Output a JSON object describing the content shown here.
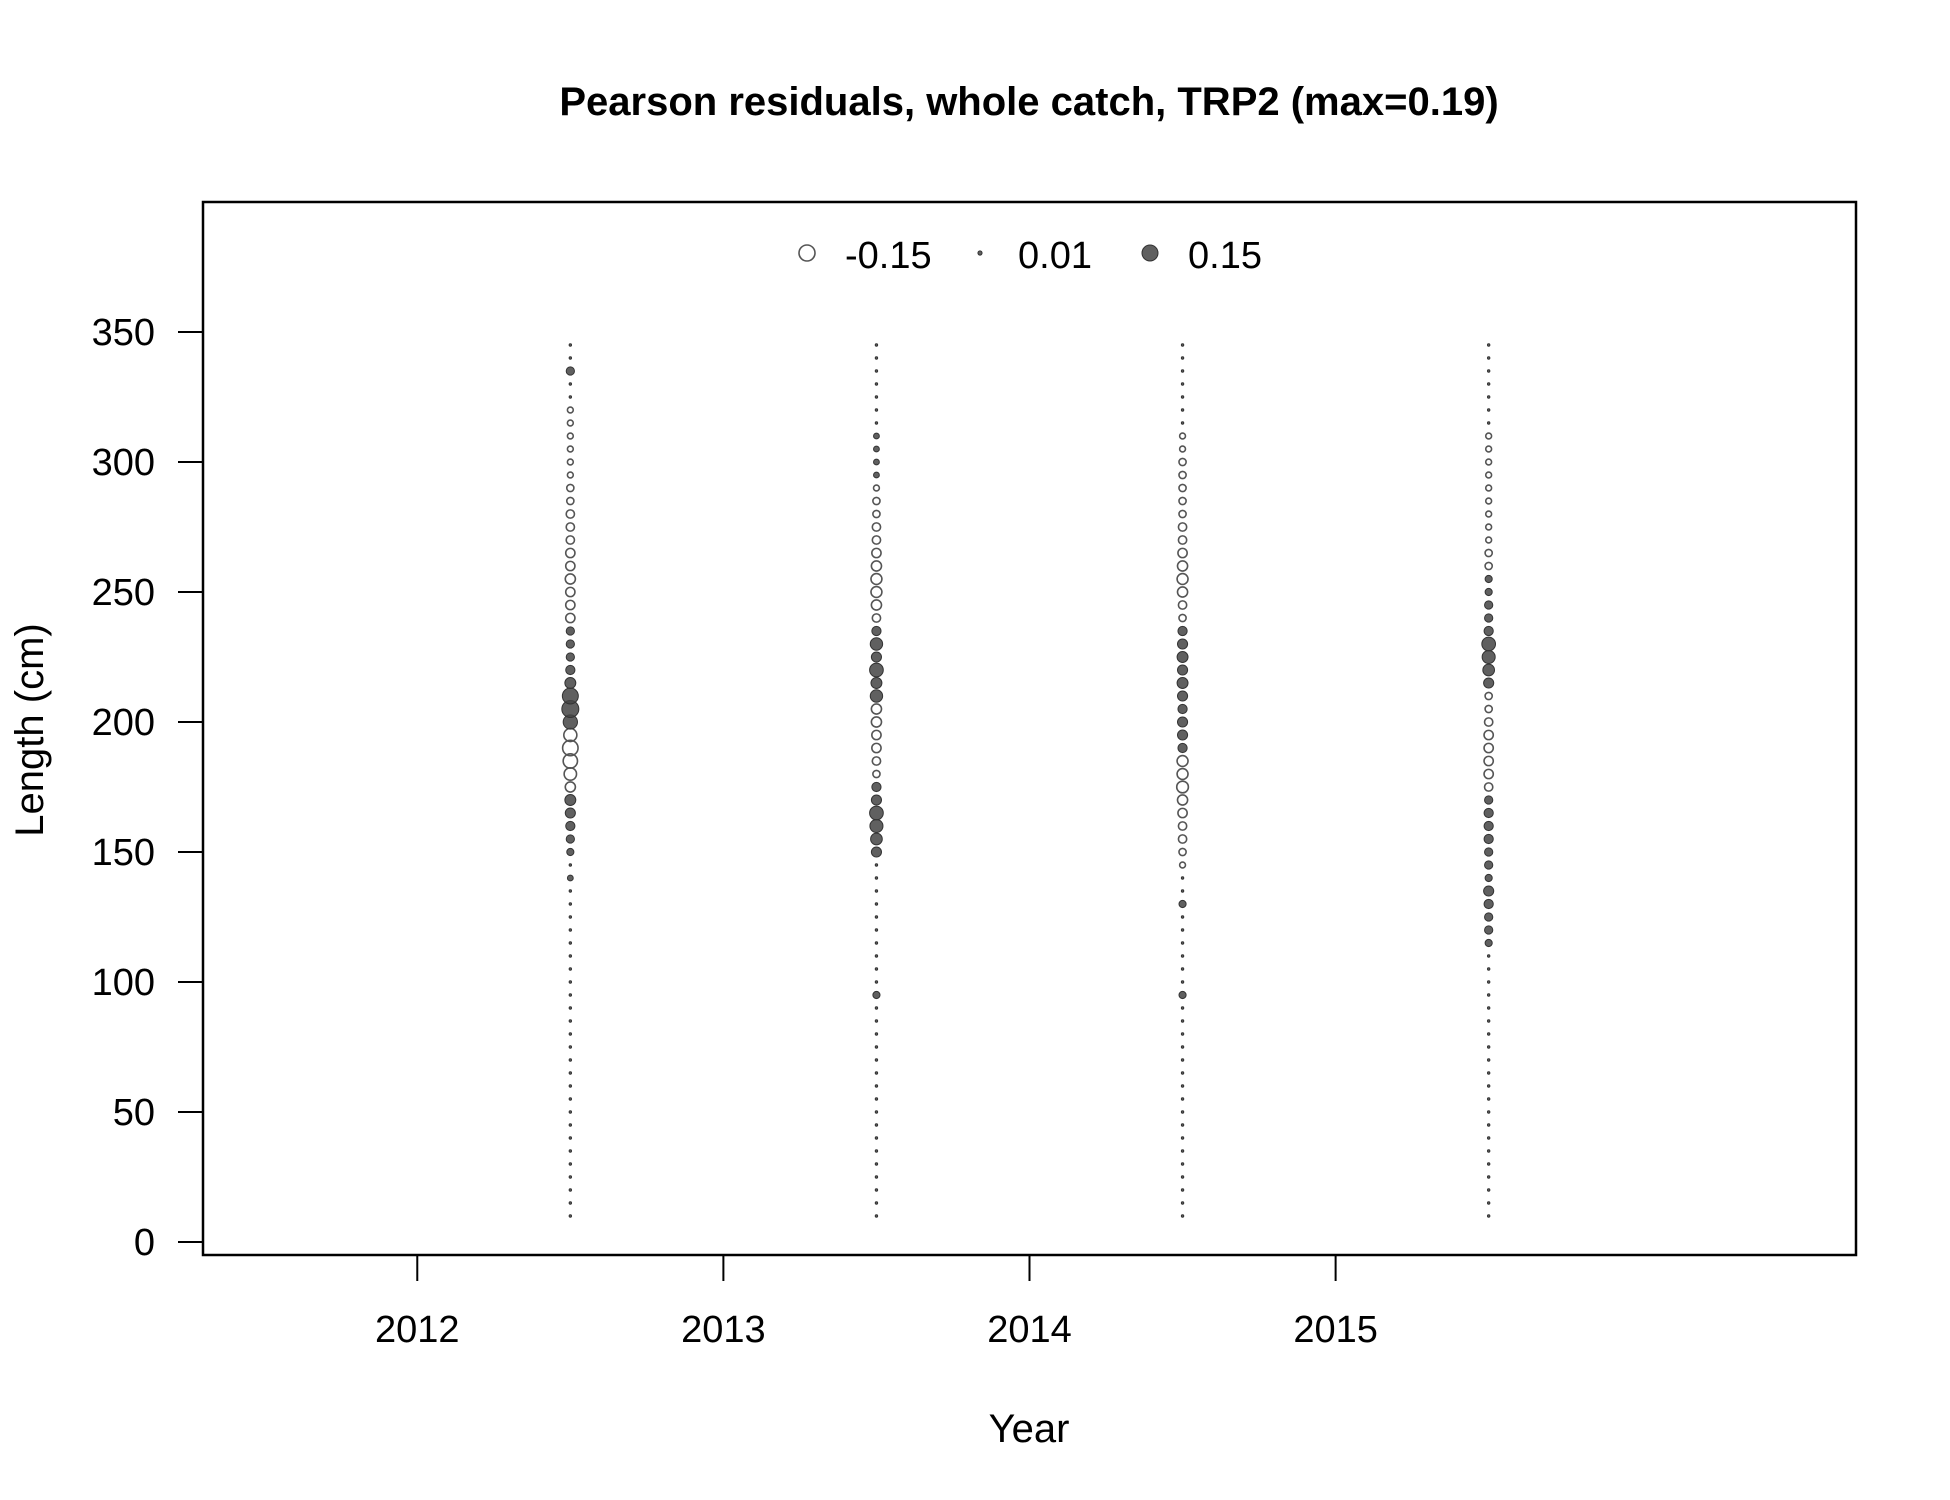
{
  "chart_data": {
    "type": "scatter",
    "title": "Pearson residuals, whole catch, TRP2 (max=0.19)",
    "xlabel": "Year",
    "ylabel": "Length (cm)",
    "xlim": [
      2011.3,
      2016.7
    ],
    "ylim": [
      -5,
      400
    ],
    "x_ticks": [
      2012,
      2013,
      2014,
      2015
    ],
    "y_ticks": [
      0,
      50,
      100,
      150,
      200,
      250,
      300,
      350
    ],
    "grid": false,
    "legend_position": "top-center",
    "legend": [
      {
        "label": "-0.15",
        "value": -0.15
      },
      {
        "label": "0.01",
        "value": 0.01
      },
      {
        "label": "0.15",
        "value": 0.15
      }
    ],
    "bubble_scale_max": 0.19,
    "negative_style": "open",
    "positive_style": "filled",
    "length_bins_start": 10,
    "length_bins_step": 5,
    "series": [
      {
        "x": 2012.5,
        "residuals": [
          0,
          0,
          0,
          0,
          0,
          0,
          0,
          0,
          0,
          0,
          0,
          0,
          0,
          0,
          0,
          0,
          0,
          0,
          0,
          0,
          0,
          0,
          0,
          0,
          0,
          0,
          0.02,
          0,
          0.03,
          0.04,
          0.05,
          0.06,
          0.07,
          -0.06,
          -0.09,
          -0.12,
          -0.14,
          -0.1,
          0.12,
          0.17,
          0.15,
          0.07,
          0.05,
          0.04,
          0.04,
          0.04,
          -0.05,
          -0.05,
          -0.05,
          -0.06,
          -0.05,
          -0.05,
          -0.04,
          -0.04,
          -0.04,
          -0.03,
          -0.03,
          -0.02,
          -0.02,
          -0.02,
          -0.02,
          -0.02,
          -0.02,
          0,
          0,
          0.04,
          0,
          0
        ]
      },
      {
        "x": 2013.5,
        "residuals": [
          0,
          0,
          0,
          0,
          0,
          0,
          0,
          0,
          0,
          0,
          0,
          0,
          0,
          0,
          0,
          0,
          0,
          0.03,
          0,
          0,
          0,
          0,
          0,
          0,
          0,
          0,
          0,
          0,
          0.06,
          0.08,
          0.1,
          0.11,
          0.06,
          0.05,
          -0.03,
          -0.04,
          -0.05,
          -0.05,
          -0.06,
          -0.06,
          0.09,
          0.07,
          0.11,
          0.06,
          0.09,
          0.05,
          -0.04,
          -0.06,
          -0.07,
          -0.07,
          -0.06,
          -0.05,
          -0.04,
          -0.04,
          -0.03,
          -0.03,
          -0.02,
          0.02,
          0.02,
          0.02,
          0.02,
          0,
          0,
          0,
          0,
          0,
          0,
          0
        ]
      },
      {
        "x": 2014.5,
        "residuals": [
          0,
          0,
          0,
          0,
          0,
          0,
          0,
          0,
          0,
          0,
          0,
          0,
          0,
          0,
          0,
          0,
          0,
          0.03,
          0,
          0,
          0,
          0,
          0,
          0,
          0.03,
          0,
          0,
          -0.02,
          -0.03,
          -0.04,
          -0.04,
          -0.05,
          -0.06,
          -0.08,
          -0.07,
          -0.07,
          0.05,
          0.06,
          0.06,
          0.05,
          0.06,
          0.07,
          0.06,
          0.07,
          0.06,
          0.05,
          -0.03,
          -0.04,
          -0.06,
          -0.07,
          -0.06,
          -0.05,
          -0.04,
          -0.04,
          -0.03,
          -0.03,
          -0.03,
          -0.03,
          -0.03,
          -0.02,
          -0.02,
          0,
          0,
          0,
          0,
          0,
          0,
          0
        ]
      },
      {
        "x": 2015.5,
        "residuals": [
          0,
          0,
          0,
          0,
          0,
          0,
          0,
          0,
          0,
          0,
          0,
          0,
          0,
          0,
          0,
          0,
          0,
          0,
          0,
          0,
          0,
          0.03,
          0.04,
          0.04,
          0.05,
          0.06,
          0.03,
          0.04,
          0.04,
          0.05,
          0.05,
          0.05,
          0.04,
          -0.04,
          -0.05,
          -0.05,
          -0.05,
          -0.05,
          -0.04,
          -0.03,
          -0.03,
          0.06,
          0.08,
          0.1,
          0.11,
          0.05,
          0.04,
          0.04,
          0.03,
          0.03,
          -0.03,
          -0.03,
          -0.02,
          -0.02,
          -0.02,
          -0.02,
          -0.02,
          -0.02,
          -0.02,
          -0.02,
          -0.02,
          0,
          0,
          0,
          0,
          0,
          0,
          0
        ]
      }
    ]
  }
}
